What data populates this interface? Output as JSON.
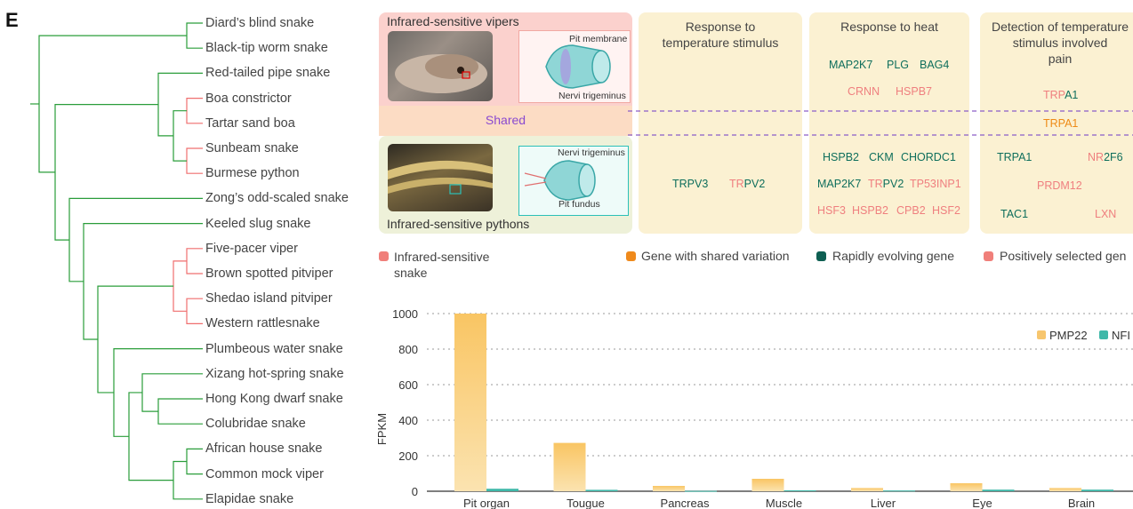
{
  "panel_letter": "E",
  "species": [
    {
      "name": "Diard’s blind snake",
      "color": "#2a9d3a"
    },
    {
      "name": "Black-tip worm snake",
      "color": "#2a9d3a"
    },
    {
      "name": "Red-tailed pipe snake",
      "color": "#2a9d3a"
    },
    {
      "name": "Boa constrictor",
      "color": "#ef6f6f"
    },
    {
      "name": "Tartar sand boa",
      "color": "#2a9d3a"
    },
    {
      "name": "Sunbeam snake",
      "color": "#2a9d3a"
    },
    {
      "name": "Burmese python",
      "color": "#ef6f6f"
    },
    {
      "name": "Zong’s odd-scaled snake",
      "color": "#2a9d3a"
    },
    {
      "name": "Keeled slug snake",
      "color": "#2a9d3a"
    },
    {
      "name": "Five-pacer viper",
      "color": "#ef6f6f"
    },
    {
      "name": "Brown spotted pitviper",
      "color": "#ef6f6f"
    },
    {
      "name": "Shedao island pitviper",
      "color": "#ef6f6f"
    },
    {
      "name": "Western rattlesnake",
      "color": "#ef6f6f"
    },
    {
      "name": "Plumbeous water snake",
      "color": "#2a9d3a"
    },
    {
      "name": "Xizang hot-spring snake",
      "color": "#2a9d3a"
    },
    {
      "name": "Hong Kong dwarf snake",
      "color": "#2a9d3a"
    },
    {
      "name": "Colubridae snake",
      "color": "#2a9d3a"
    },
    {
      "name": "African house snake",
      "color": "#2a9d3a"
    },
    {
      "name": "Common mock viper",
      "color": "#2a9d3a"
    },
    {
      "name": "Elapidae snake",
      "color": "#2a9d3a"
    }
  ],
  "schematic": {
    "vipers_title": "Infrared-sensitive vipers",
    "pythons_title": "Infrared-sensitive pythons",
    "shared_label": "Shared",
    "viper_labels": {
      "pit_membrane": "Pit membrane",
      "nervi": "Nervi trigeminus"
    },
    "python_labels": {
      "nervi": "Nervi trigeminus",
      "pit_fundus": "Pit fundus"
    }
  },
  "columns": [
    {
      "title": "Response to temperature stimulus",
      "title_lines": [
        "Response to",
        "temperature stimulus"
      ],
      "genes": [
        {
          "parts": [
            {
              "t": "TRPV3",
              "c": "teal"
            }
          ]
        },
        {
          "parts": [
            {
              "t": "TR",
              "c": "pink"
            },
            {
              "t": "PV2",
              "c": "teal"
            }
          ]
        }
      ]
    },
    {
      "title": "Response to heat",
      "title_lines": [
        "Response to heat"
      ]
    },
    {
      "title": "Detection of temperature stimulus involved pain",
      "title_lines": [
        "Detection of temperature",
        "stimulus involved",
        "pain"
      ]
    }
  ],
  "heat_genes": {
    "viper_row1": [
      "MAP2K7",
      "PLG",
      "BAG4"
    ],
    "viper_row2": [
      "CRNN",
      "HSPB7"
    ],
    "python_row1": [
      "HSPB2",
      "CKM",
      "CHORDC1"
    ],
    "python_row2": [
      "MAP2K7",
      "TR",
      "PV2",
      "TP53INP1"
    ],
    "python_row3": [
      "HSF3",
      "HSPB2",
      "CPB2",
      "HSF2"
    ]
  },
  "pain_genes": {
    "viper": {
      "a": "TRP",
      "b": "A1"
    },
    "shared": "TRPA1",
    "python_row1": [
      "TRPA1",
      "NR",
      "2F6"
    ],
    "python_row2": "PRDM12",
    "python_row3": [
      "TAC1",
      "LXN"
    ]
  },
  "legend": {
    "infrared": "Infrared-sensitive snake",
    "infrared_lines": [
      "Infrared-sensitive",
      "snake"
    ],
    "shared": "Gene with shared variation",
    "rapid": "Rapidly evolving gene",
    "positive": "Positively selected gen",
    "colors": {
      "infrared": "#f07f7a",
      "shared": "#ef8a1c",
      "rapid": "#0e5f52",
      "positive": "#f07f7a"
    }
  },
  "chart_data": {
    "type": "bar",
    "categories": [
      "Pit organ",
      "Tougue",
      "Pancreas",
      "Muscle",
      "Liver",
      "Eye",
      "Brain"
    ],
    "series": [
      {
        "name": "PMP22",
        "values": [
          1000,
          272,
          30,
          70,
          18,
          45,
          18
        ],
        "color": "#f7c66e"
      },
      {
        "name": "NFI",
        "values": [
          14,
          8,
          2,
          5,
          4,
          9,
          9
        ],
        "color": "#3fb8a9"
      }
    ],
    "ylabel": "FPKM",
    "ylim": [
      0,
      1000
    ],
    "yticks": [
      0,
      200,
      400,
      600,
      800,
      1000
    ],
    "grid": true,
    "legend_position": "top-right"
  }
}
